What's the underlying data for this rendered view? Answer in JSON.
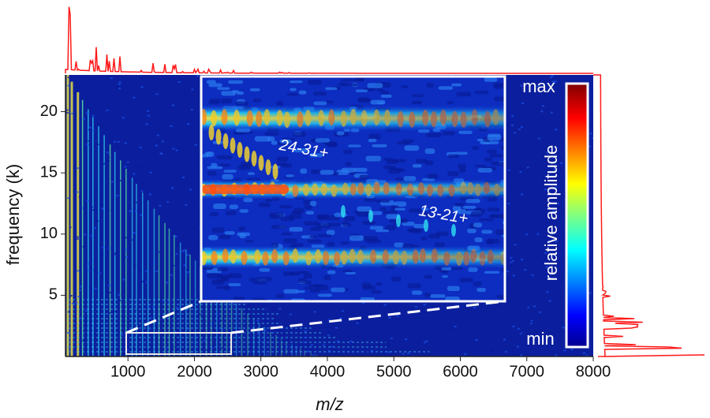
{
  "chart_data": {
    "type": "heatmap",
    "xlabel": "m/z",
    "ylabel": "frequency (k)",
    "xlim": [
      60,
      8000
    ],
    "xticks": [
      1000,
      2000,
      3000,
      4000,
      5000,
      6000,
      7000,
      8000
    ],
    "ylim": [
      0,
      23
    ],
    "yticks": [
      5,
      10,
      15,
      20
    ],
    "annotations": [
      "24-31+",
      "13-21+"
    ],
    "colorbar": {
      "label": "relative amplitude",
      "max_label": "max",
      "min_label": "min"
    },
    "spectrum_color": "#ff1a1a"
  }
}
